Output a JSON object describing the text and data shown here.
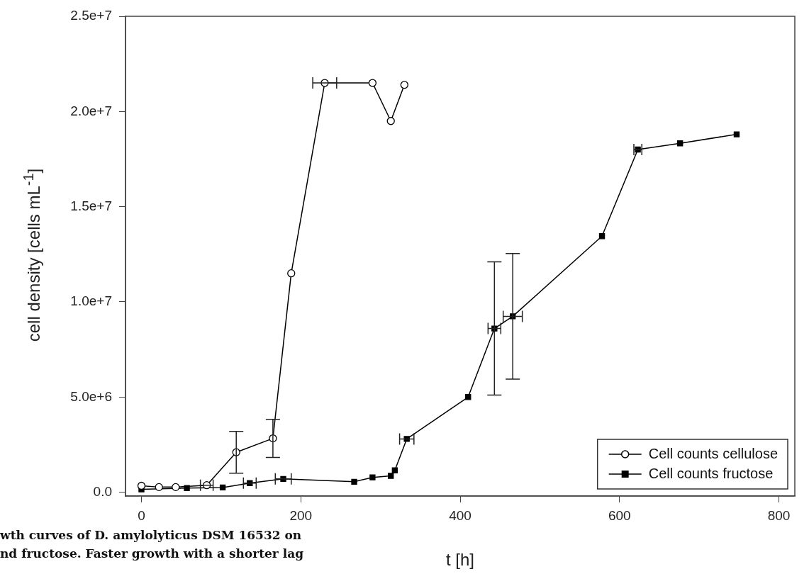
{
  "chart_data": {
    "type": "line",
    "xlabel": "t [h]",
    "ylabel": "cell density [cells mL$^{-1}$]",
    "xlim": [
      -20,
      820
    ],
    "xticks": [
      0,
      200,
      400,
      600,
      800
    ],
    "ylim": [
      -200000,
      25000000
    ],
    "yticks": [
      {
        "value": 0,
        "label": "0.0"
      },
      {
        "value": 5000000,
        "label": "5.0e+6"
      },
      {
        "value": 10000000,
        "label": "1.0e+7"
      },
      {
        "value": 15000000,
        "label": "1.5e+7"
      },
      {
        "value": 20000000,
        "label": "2.0e+7"
      },
      {
        "value": 25000000,
        "label": "2.5e+7"
      }
    ],
    "grid": false,
    "legend": "bottom right",
    "line_style": "solid",
    "series": [
      {
        "name": "Cell counts cellulose",
        "color": "#000000",
        "marker": "circle",
        "x": [
          0,
          22,
          43,
          82,
          119,
          165,
          188,
          230,
          290,
          313,
          330
        ],
        "values": [
          340000,
          270000,
          270000,
          370000,
          2100000,
          2830000,
          11500000,
          21500000,
          21500000,
          19500000,
          21400000
        ],
        "errors": [
          null,
          null,
          null,
          null,
          1100000,
          1000000,
          null,
          null,
          null,
          null,
          null
        ],
        "xerrors": [
          null,
          null,
          null,
          8,
          null,
          null,
          null,
          15,
          null,
          null,
          null
        ]
      },
      {
        "name": "Cell counts fructose",
        "color": "#000000",
        "marker": "square",
        "x": [
          0,
          57,
          102,
          136,
          178,
          267,
          290,
          313,
          318,
          333,
          410,
          443,
          466,
          578,
          623,
          676,
          747
        ],
        "values": [
          150000,
          220000,
          250000,
          480000,
          700000,
          550000,
          780000,
          860000,
          1150000,
          2800000,
          5000000,
          8600000,
          9240000,
          13450000,
          18000000,
          18330000,
          18800000
        ],
        "errors": [
          null,
          null,
          null,
          null,
          null,
          null,
          null,
          null,
          null,
          null,
          null,
          3500000,
          3300000,
          null,
          null,
          null,
          null
        ],
        "xerrors": [
          null,
          null,
          null,
          8,
          10,
          null,
          null,
          null,
          null,
          9,
          null,
          8,
          12,
          null,
          5,
          null,
          null
        ]
      }
    ],
    "annotations": [
      "wth curves of D. amylolyticus DSM 16532 on",
      "nd fructose. Faster growth with a shorter lag"
    ]
  }
}
